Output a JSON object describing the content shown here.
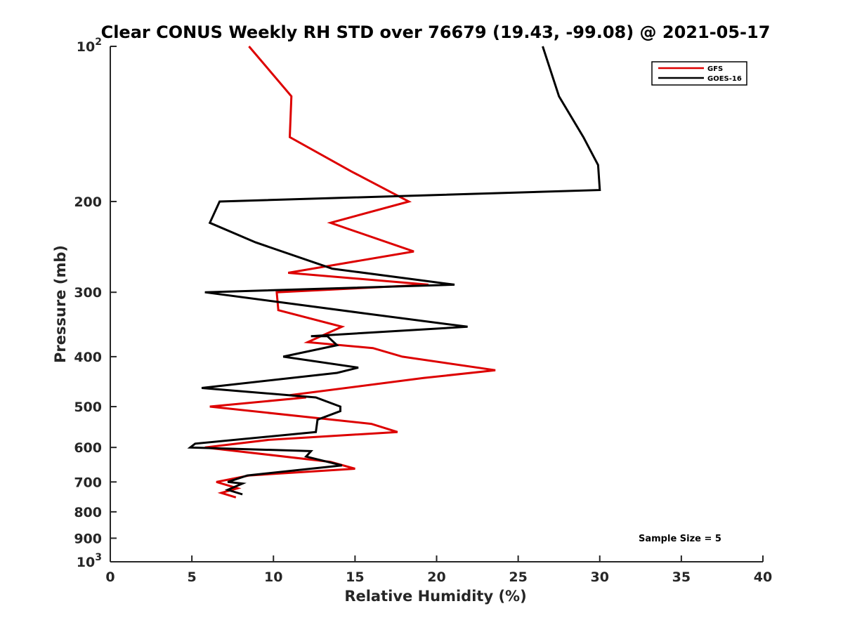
{
  "chart_data": {
    "type": "line",
    "title": "Clear CONUS Weekly RH STD over 76679 (19.43, -99.08) @ 2021-05-17",
    "xlabel": "Relative Humidity (%)",
    "ylabel": "Pressure (mb)",
    "xlim": [
      0,
      40
    ],
    "ylim": [
      100,
      1000
    ],
    "yscale": "log",
    "y_reversed": true,
    "x_ticks": [
      0,
      5,
      10,
      15,
      20,
      25,
      30,
      35,
      40
    ],
    "y_ticks": [
      {
        "value": 100,
        "label": "10",
        "sup": "2"
      },
      {
        "value": 200,
        "label": "200"
      },
      {
        "value": 300,
        "label": "300"
      },
      {
        "value": 400,
        "label": "400"
      },
      {
        "value": 500,
        "label": "500"
      },
      {
        "value": 600,
        "label": "600"
      },
      {
        "value": 700,
        "label": "700"
      },
      {
        "value": 800,
        "label": "800"
      },
      {
        "value": 900,
        "label": "900"
      },
      {
        "value": 1000,
        "label": "10",
        "sup": "3"
      }
    ],
    "legend_position": "top-right",
    "annotation": "Sample Size = 5",
    "series": [
      {
        "name": "GFS",
        "color": "#dd0000",
        "points": [
          [
            8.5,
            100
          ],
          [
            11.1,
            125
          ],
          [
            11.0,
            150
          ],
          [
            14.8,
            175
          ],
          [
            18.3,
            200
          ],
          [
            13.5,
            220
          ],
          [
            18.6,
            250
          ],
          [
            10.9,
            275
          ],
          [
            19.5,
            290
          ],
          [
            10.2,
            300
          ],
          [
            10.3,
            325
          ],
          [
            14.2,
            350
          ],
          [
            12.1,
            375
          ],
          [
            16.1,
            385
          ],
          [
            17.9,
            400
          ],
          [
            23.6,
            425
          ],
          [
            19.2,
            440
          ],
          [
            11.0,
            475
          ],
          [
            12.0,
            480
          ],
          [
            6.1,
            500
          ],
          [
            16.0,
            540
          ],
          [
            17.6,
            560
          ],
          [
            9.7,
            580
          ],
          [
            5.8,
            600
          ],
          [
            13.5,
            640
          ],
          [
            15.0,
            660
          ],
          [
            8.5,
            680
          ],
          [
            6.5,
            700
          ],
          [
            7.8,
            720
          ],
          [
            6.8,
            735
          ],
          [
            7.7,
            750
          ]
        ]
      },
      {
        "name": "GOES-16",
        "color": "#000000",
        "points": [
          [
            26.5,
            100
          ],
          [
            27.5,
            125
          ],
          [
            29.0,
            150
          ],
          [
            29.9,
            170
          ],
          [
            30.0,
            190
          ],
          [
            6.7,
            200
          ],
          [
            6.1,
            220
          ],
          [
            8.9,
            240
          ],
          [
            13.6,
            270
          ],
          [
            21.1,
            290
          ],
          [
            5.8,
            300
          ],
          [
            15.7,
            330
          ],
          [
            21.9,
            350
          ],
          [
            12.3,
            365
          ],
          [
            13.3,
            365
          ],
          [
            13.9,
            380
          ],
          [
            10.6,
            400
          ],
          [
            15.2,
            420
          ],
          [
            13.9,
            430
          ],
          [
            5.6,
            460
          ],
          [
            12.6,
            480
          ],
          [
            14.1,
            500
          ],
          [
            14.1,
            510
          ],
          [
            12.7,
            530
          ],
          [
            12.6,
            560
          ],
          [
            5.2,
            590
          ],
          [
            4.9,
            600
          ],
          [
            12.3,
            610
          ],
          [
            12.0,
            625
          ],
          [
            14.2,
            650
          ],
          [
            8.4,
            680
          ],
          [
            7.2,
            700
          ],
          [
            8.1,
            705
          ],
          [
            7.2,
            725
          ],
          [
            8.1,
            740
          ]
        ]
      }
    ]
  }
}
